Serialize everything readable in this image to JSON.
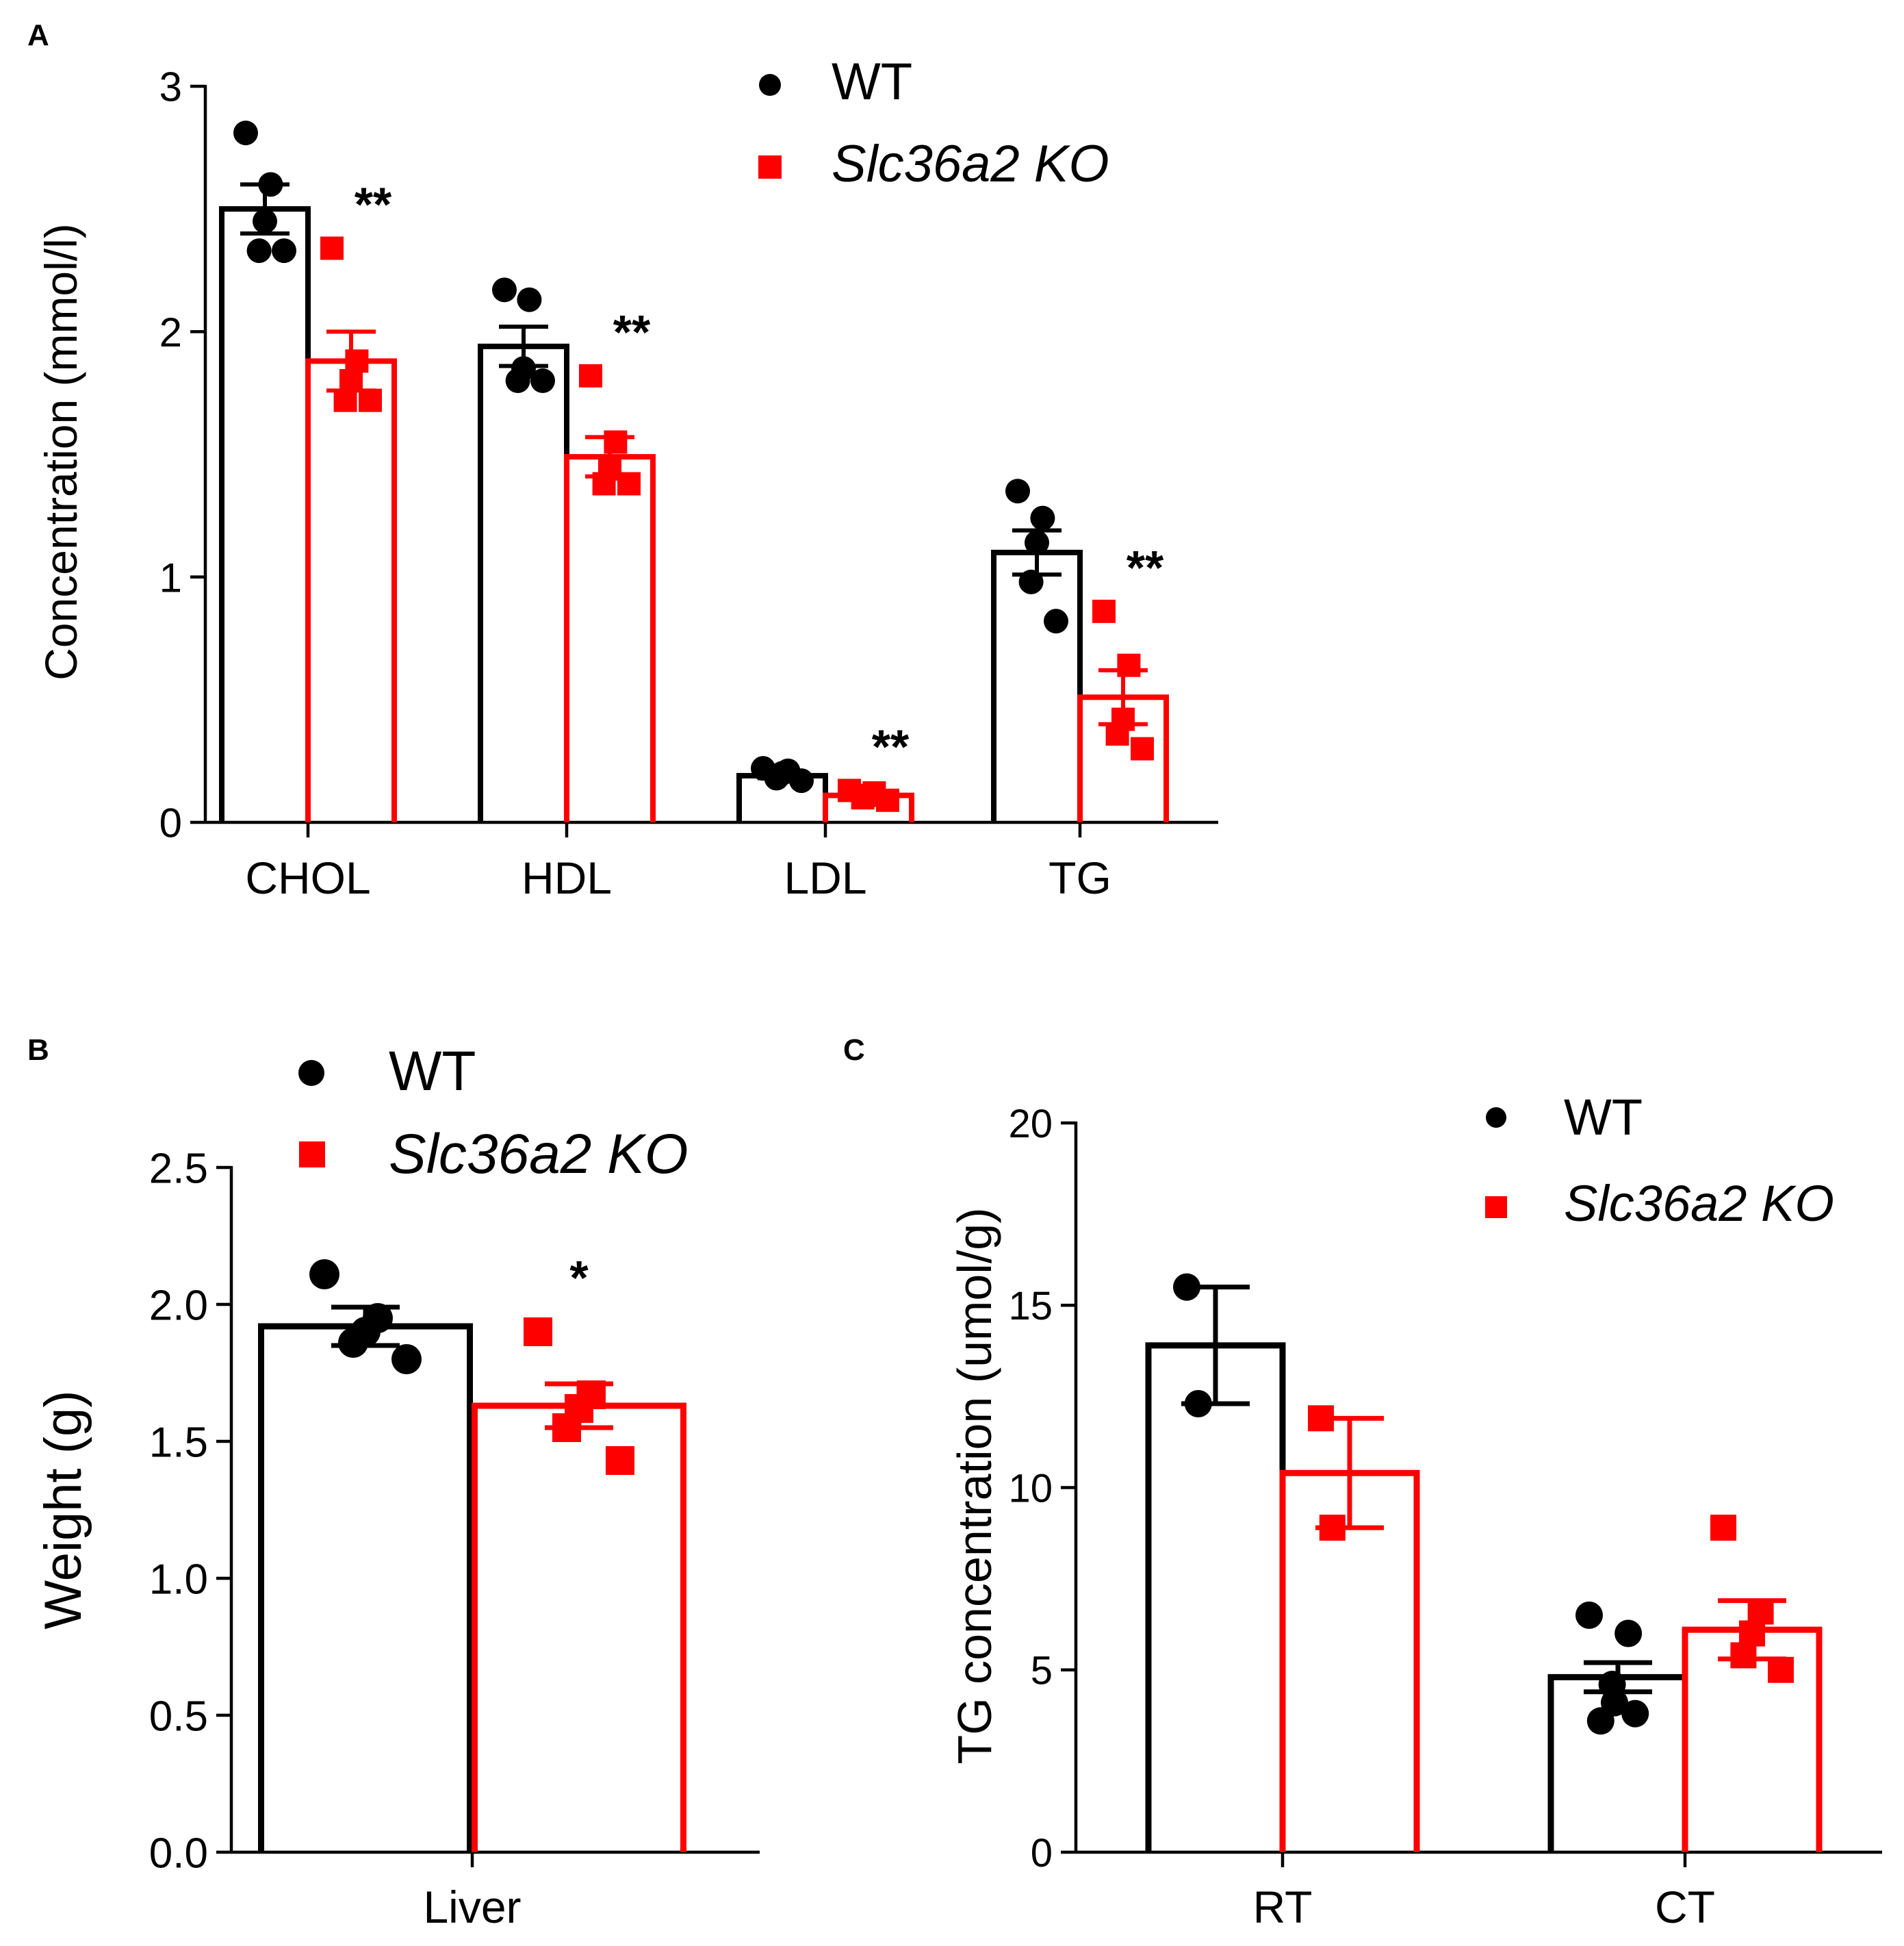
{
  "colors": {
    "wt": "#000000",
    "ko": "#ff0000",
    "axis": "#000000",
    "background": "#ffffff"
  },
  "chart_data": [
    {
      "panel": "A",
      "type": "bar",
      "categories": [
        "CHOL",
        "HDL",
        "LDL",
        "TG"
      ],
      "ylabel": "Concentration (mmol/l)",
      "ylim": [
        0,
        3
      ],
      "yticks": [
        0,
        1,
        2,
        3
      ],
      "ytick_labels": [
        "0",
        "1",
        "2",
        "3"
      ],
      "legend": [
        "WT",
        "Slc36a2 KO"
      ],
      "legend_position": "top-right",
      "series": [
        {
          "name": "WT",
          "marker": "circle",
          "values": [
            2.5,
            1.94,
            0.19,
            1.1
          ],
          "sem": [
            0.1,
            0.08,
            0.01,
            0.09
          ],
          "points": [
            [
              2.81,
              2.6,
              2.45,
              2.33,
              2.33
            ],
            [
              2.17,
              2.13,
              1.85,
              1.8,
              1.8
            ],
            [
              0.22,
              0.21,
              0.2,
              0.18,
              0.17
            ],
            [
              1.35,
              1.24,
              1.14,
              0.98,
              0.82
            ]
          ]
        },
        {
          "name": "Slc36a2 KO",
          "marker": "square",
          "values": [
            1.88,
            1.49,
            0.11,
            0.51
          ],
          "sem": [
            0.12,
            0.08,
            0.01,
            0.11
          ],
          "points": [
            [
              2.34,
              1.88,
              1.8,
              1.72,
              1.72
            ],
            [
              1.82,
              1.55,
              1.44,
              1.38,
              1.38
            ],
            [
              0.13,
              0.12,
              0.11,
              0.1,
              0.09
            ],
            [
              0.86,
              0.64,
              0.42,
              0.36,
              0.3
            ]
          ]
        }
      ],
      "annotations": [
        "**",
        "**",
        "**",
        "**"
      ]
    },
    {
      "panel": "B",
      "type": "bar",
      "categories": [
        "Liver"
      ],
      "ylabel": "Weight (g)",
      "ylim": [
        0,
        2.5
      ],
      "yticks": [
        0,
        0.5,
        1.0,
        1.5,
        2.0,
        2.5
      ],
      "ytick_labels": [
        "0.0",
        "0.5",
        "1.0",
        "1.5",
        "2.0",
        "2.5"
      ],
      "legend": [
        "WT",
        "Slc36a2 KO"
      ],
      "legend_position": "top-left",
      "series": [
        {
          "name": "WT",
          "marker": "circle",
          "values": [
            1.92
          ],
          "sem": [
            0.07
          ],
          "points": [
            [
              2.11,
              1.95,
              1.9,
              1.86,
              1.8
            ]
          ]
        },
        {
          "name": "Slc36a2 KO",
          "marker": "square",
          "values": [
            1.63
          ],
          "sem": [
            0.08
          ],
          "points": [
            [
              1.9,
              1.67,
              1.62,
              1.55,
              1.43
            ]
          ]
        }
      ],
      "annotations": [
        "*"
      ]
    },
    {
      "panel": "C",
      "type": "bar",
      "categories": [
        "RT",
        "CT"
      ],
      "ylabel": "TG concentration (umol/g)",
      "ylim": [
        0,
        20
      ],
      "yticks": [
        0,
        5,
        10,
        15,
        20
      ],
      "ytick_labels": [
        "0",
        "5",
        "10",
        "15",
        "20"
      ],
      "legend": [
        "WT",
        "Slc36a2 KO"
      ],
      "legend_position": "top-right",
      "series": [
        {
          "name": "WT",
          "marker": "circle",
          "values": [
            13.9,
            4.8
          ],
          "sem": [
            1.6,
            0.4
          ],
          "points": [
            [
              15.5,
              12.3
            ],
            [
              6.5,
              6.0,
              4.6,
              4.1,
              3.8,
              3.6
            ]
          ]
        },
        {
          "name": "Slc36a2 KO",
          "marker": "square",
          "values": [
            10.4,
            6.1
          ],
          "sem": [
            1.5,
            0.8
          ],
          "points": [
            [
              11.9,
              8.9
            ],
            [
              8.9,
              6.6,
              6.0,
              5.4,
              5.0
            ]
          ]
        }
      ],
      "annotations": []
    }
  ]
}
